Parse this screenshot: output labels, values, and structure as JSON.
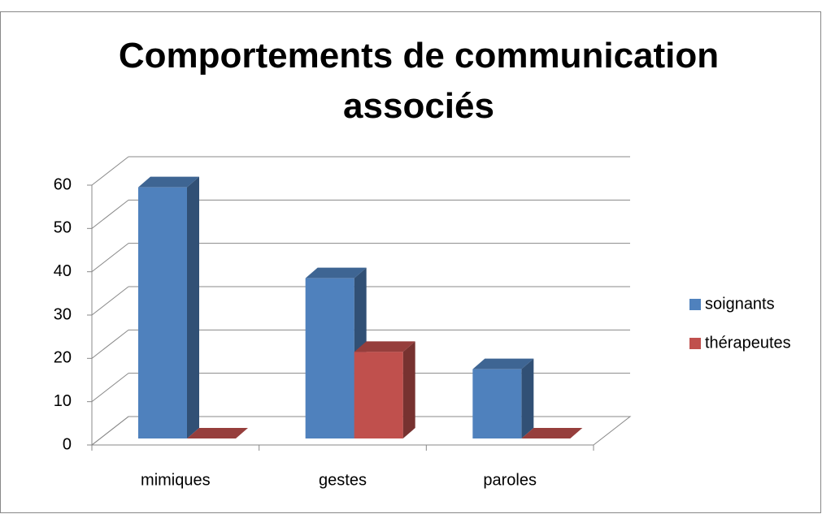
{
  "chart_data": {
    "type": "bar3d",
    "title": "Comportements de communication associés",
    "categories": [
      "mimiques",
      "gestes",
      "paroles"
    ],
    "series": [
      {
        "name": "soignants",
        "color": "#4f81bd",
        "values": [
          58,
          37,
          16
        ]
      },
      {
        "name": "thérapeutes",
        "color": "#c0504d",
        "values": [
          0,
          20,
          0
        ]
      }
    ],
    "ylim": [
      0,
      60
    ],
    "yticks": [
      0,
      10,
      20,
      30,
      40,
      50,
      60
    ],
    "grid": true,
    "legend": "right"
  }
}
